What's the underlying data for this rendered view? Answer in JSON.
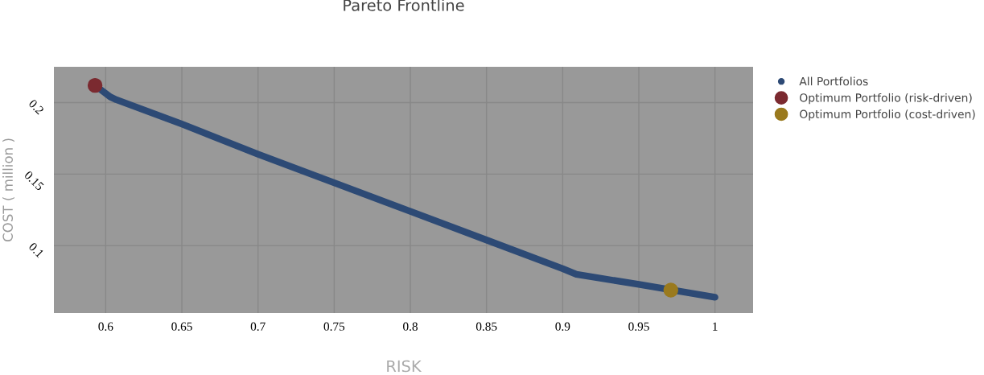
{
  "chart_data": {
    "type": "line",
    "title": "Pareto Frontline",
    "xlabel": "RISK",
    "ylabel": "COST ( million )",
    "xlim": [
      0.566,
      1.025
    ],
    "ylim": [
      0.053,
      0.225
    ],
    "xticks": [
      0.6,
      0.65,
      0.7,
      0.75,
      0.8,
      0.85,
      0.9,
      0.95,
      1
    ],
    "yticks": [
      0.1,
      0.15,
      0.2
    ],
    "grid": true,
    "legend": "top right",
    "series": [
      {
        "name": "All Portfolios",
        "color": "#2d4a75",
        "x": [
          0.593,
          0.598,
          0.603,
          0.607,
          0.65,
          0.7,
          0.75,
          0.8,
          0.85,
          0.9,
          0.909,
          0.95,
          1.0
        ],
        "values": [
          0.212,
          0.208,
          0.204,
          0.202,
          0.185,
          0.164,
          0.144,
          0.124,
          0.104,
          0.084,
          0.08,
          0.073,
          0.064
        ]
      },
      {
        "name": "Optimum Portfolio (risk-driven)",
        "type": "scatter",
        "color": "#7b2a30",
        "x": [
          0.593
        ],
        "values": [
          0.212
        ]
      },
      {
        "name": "Optimum Portfolio (cost-driven)",
        "type": "scatter",
        "color": "#9a7a1e",
        "x": [
          0.971
        ],
        "values": [
          0.069
        ]
      }
    ]
  }
}
